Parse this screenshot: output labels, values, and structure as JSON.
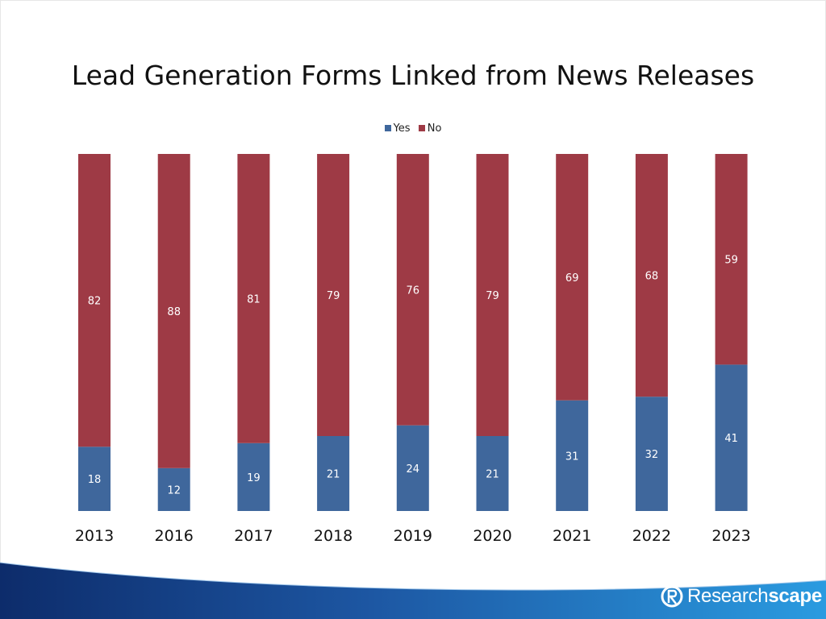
{
  "slide": {
    "brand": {
      "name_part1": "Research",
      "name_part2": "scape",
      "logo_icon": "researchscape-logo-icon"
    }
  },
  "chart_data": {
    "type": "bar",
    "stacked": true,
    "title": "Lead Generation Forms Linked from News Releases",
    "categories": [
      "2013",
      "2016",
      "2017",
      "2018",
      "2019",
      "2020",
      "2021",
      "2022",
      "2023"
    ],
    "series": [
      {
        "name": "Yes",
        "color": "#3f679c",
        "values": [
          18,
          12,
          19,
          21,
          24,
          21,
          31,
          32,
          41
        ]
      },
      {
        "name": "No",
        "color": "#9e3a45",
        "values": [
          82,
          88,
          81,
          79,
          76,
          79,
          69,
          68,
          59
        ]
      }
    ],
    "ylim": [
      0,
      100
    ],
    "grid": false,
    "legend": "top-center",
    "data_labels": true
  }
}
